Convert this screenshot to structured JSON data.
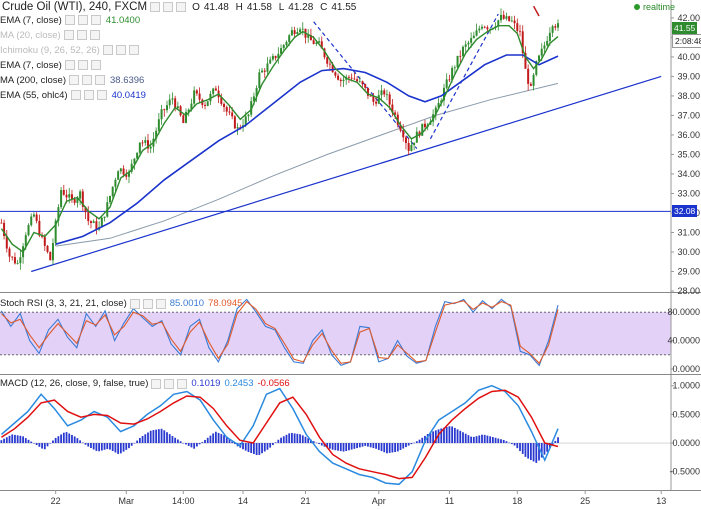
{
  "header": {
    "title": "Crude Oil (WTI), 240, FXCM",
    "ohlc": [
      "O",
      "41.48",
      "H",
      "41.58",
      "L",
      "41.28",
      "C",
      "41.55"
    ],
    "realtime_label": "realtime"
  },
  "indicators": [
    {
      "label": "EMA (7, close)",
      "value": "41.0400",
      "color": "#2e8b2e",
      "faded": false
    },
    {
      "label": "MA (20, close)",
      "value": "",
      "color": "#999999",
      "faded": true
    },
    {
      "label": "Ichimoku (9, 26, 52, 26)",
      "value": "",
      "color": "#999999",
      "faded": true
    },
    {
      "label": "EMA (7, close)",
      "value": "",
      "color": "#999999",
      "faded": false
    },
    {
      "label": "MA (200, close)",
      "value": "38.6396",
      "color": "#4a5a8a",
      "faded": false
    },
    {
      "label": "EMA (55, ohlc4)",
      "value": "40.0419",
      "color": "#1a33cc",
      "faded": false
    }
  ],
  "price_tags": {
    "last": "41.55",
    "countdown": "2:08:48",
    "hline": "32.08"
  },
  "colors": {
    "up_candle": "#2e8b2e",
    "down_candle": "#c21a1a",
    "ema7": "#2e8b2e",
    "ema55": "#1a33cc",
    "ma200": "#8a9aaa",
    "trendline": "#1a33cc",
    "stoch_k": "#3a7bd5",
    "stoch_d": "#e05a2a",
    "stoch_band": "#d9c2f5",
    "macd_line": "#2a8ae0",
    "signal_line": "#e01010",
    "hist": "#2a3ad0"
  },
  "stoch": {
    "label": "Stoch RSI (3, 3, 21, 21, close)",
    "k": "85.0010",
    "d": "78.0945"
  },
  "macd": {
    "label": "MACD (12, 26, close, 9, false, true)",
    "hist": "0.1019",
    "macd": "0.2453",
    "signal": "-0.0566"
  },
  "chart_data": [
    {
      "type": "candlestick",
      "title": "Crude Oil (WTI), 240, FXCM",
      "x_tick_labels": [
        "22",
        "Mar",
        "14:00",
        "14",
        "21",
        "Apr",
        "11",
        "18",
        "25",
        "13"
      ],
      "y_tick_labels": [
        "28.00",
        "29.00",
        "30.00",
        "31.00",
        "32.00",
        "33.00",
        "34.00",
        "35.00",
        "36.00",
        "37.00",
        "38.00",
        "39.00",
        "40.00",
        "41.00",
        "42.00"
      ],
      "ylim": [
        28.0,
        42.2
      ],
      "close_path": [
        [
          0,
          31.5
        ],
        [
          3,
          29.8
        ],
        [
          6,
          29.4
        ],
        [
          9,
          31.0
        ],
        [
          12,
          31.9
        ],
        [
          15,
          30.6
        ],
        [
          18,
          29.6
        ],
        [
          22,
          33.2
        ],
        [
          26,
          32.6
        ],
        [
          29,
          33.0
        ],
        [
          32,
          31.6
        ],
        [
          36,
          31.2
        ],
        [
          39,
          32.4
        ],
        [
          43,
          34.3
        ],
        [
          47,
          34.0
        ],
        [
          51,
          35.7
        ],
        [
          55,
          35.4
        ],
        [
          59,
          37.1
        ],
        [
          63,
          37.9
        ],
        [
          67,
          36.6
        ],
        [
          71,
          38.1
        ],
        [
          75,
          37.6
        ],
        [
          79,
          38.4
        ],
        [
          83,
          37.2
        ],
        [
          87,
          36.3
        ],
        [
          91,
          37.0
        ],
        [
          95,
          39.1
        ],
        [
          99,
          39.7
        ],
        [
          103,
          40.4
        ],
        [
          107,
          41.3
        ],
        [
          110,
          41.6
        ],
        [
          113,
          40.9
        ],
        [
          117,
          40.6
        ],
        [
          121,
          39.6
        ],
        [
          125,
          38.8
        ],
        [
          129,
          39.0
        ],
        [
          133,
          38.5
        ],
        [
          137,
          37.7
        ],
        [
          141,
          38.2
        ],
        [
          145,
          37.0
        ],
        [
          148,
          36.1
        ],
        [
          150,
          35.3
        ],
        [
          153,
          36.0
        ],
        [
          157,
          36.7
        ],
        [
          160,
          37.2
        ],
        [
          163,
          38.3
        ],
        [
          166,
          39.3
        ],
        [
          170,
          40.4
        ],
        [
          174,
          41.0
        ],
        [
          177,
          41.7
        ],
        [
          180,
          41.5
        ],
        [
          184,
          42.0
        ],
        [
          188,
          41.8
        ],
        [
          191,
          41.2
        ],
        [
          193,
          39.3
        ],
        [
          195,
          38.3
        ],
        [
          197,
          39.6
        ],
        [
          200,
          40.6
        ],
        [
          203,
          41.8
        ],
        [
          205,
          41.55
        ]
      ],
      "ema7_path": [
        [
          0,
          31.2
        ],
        [
          4,
          30.4
        ],
        [
          8,
          30.0
        ],
        [
          12,
          31.0
        ],
        [
          16,
          30.8
        ],
        [
          20,
          31.4
        ],
        [
          24,
          32.6
        ],
        [
          28,
          32.8
        ],
        [
          32,
          32.1
        ],
        [
          36,
          31.7
        ],
        [
          40,
          32.3
        ],
        [
          44,
          33.8
        ],
        [
          48,
          34.2
        ],
        [
          52,
          35.2
        ],
        [
          56,
          35.6
        ],
        [
          60,
          36.6
        ],
        [
          64,
          37.4
        ],
        [
          68,
          37.0
        ],
        [
          72,
          37.6
        ],
        [
          76,
          37.8
        ],
        [
          80,
          38.1
        ],
        [
          84,
          37.5
        ],
        [
          88,
          36.8
        ],
        [
          92,
          37.3
        ],
        [
          96,
          38.6
        ],
        [
          100,
          39.5
        ],
        [
          104,
          40.3
        ],
        [
          108,
          41.0
        ],
        [
          111,
          41.3
        ],
        [
          115,
          41.0
        ],
        [
          119,
          40.3
        ],
        [
          123,
          39.4
        ],
        [
          127,
          38.9
        ],
        [
          131,
          38.7
        ],
        [
          135,
          38.1
        ],
        [
          139,
          37.9
        ],
        [
          143,
          37.4
        ],
        [
          147,
          36.5
        ],
        [
          151,
          35.8
        ],
        [
          155,
          36.1
        ],
        [
          159,
          36.8
        ],
        [
          163,
          37.9
        ],
        [
          167,
          39.1
        ],
        [
          171,
          40.2
        ],
        [
          175,
          40.9
        ],
        [
          179,
          41.3
        ],
        [
          183,
          41.6
        ],
        [
          187,
          41.6
        ],
        [
          190,
          41.2
        ],
        [
          193,
          40.0
        ],
        [
          196,
          39.4
        ],
        [
          199,
          39.9
        ],
        [
          202,
          40.7
        ],
        [
          205,
          41.04
        ]
      ],
      "ema55_path": [
        [
          20,
          30.4
        ],
        [
          30,
          30.8
        ],
        [
          40,
          31.5
        ],
        [
          50,
          32.5
        ],
        [
          60,
          33.7
        ],
        [
          70,
          34.7
        ],
        [
          80,
          35.7
        ],
        [
          90,
          36.5
        ],
        [
          100,
          37.6
        ],
        [
          110,
          38.7
        ],
        [
          118,
          39.3
        ],
        [
          126,
          39.4
        ],
        [
          134,
          39.2
        ],
        [
          142,
          38.7
        ],
        [
          150,
          38.0
        ],
        [
          156,
          37.7
        ],
        [
          162,
          38.0
        ],
        [
          170,
          38.8
        ],
        [
          178,
          39.6
        ],
        [
          186,
          40.1
        ],
        [
          192,
          40.1
        ],
        [
          198,
          39.6
        ],
        [
          205,
          40.04
        ]
      ],
      "ma200_path": [
        [
          20,
          30.3
        ],
        [
          40,
          30.7
        ],
        [
          60,
          31.6
        ],
        [
          80,
          32.7
        ],
        [
          100,
          33.9
        ],
        [
          120,
          35.0
        ],
        [
          140,
          36.0
        ],
        [
          160,
          37.0
        ],
        [
          180,
          37.8
        ],
        [
          205,
          38.64
        ]
      ],
      "annotations": [
        {
          "type": "horizontal-line",
          "value": 32.08
        },
        {
          "type": "trendline",
          "from": [
            11,
            29.0
          ],
          "to": [
            243,
            39.0
          ]
        },
        {
          "type": "dashed-line",
          "from": [
            115,
            41.8
          ],
          "to": [
            153,
            35.3
          ]
        },
        {
          "type": "dashed-line",
          "from": [
            158,
            35.8
          ],
          "to": [
            183,
            42.2
          ]
        }
      ]
    },
    {
      "type": "line",
      "title": "Stoch RSI (3, 3, 21, 21, close)",
      "y_tick_labels": [
        "0.0000",
        "40.0000",
        "80.0000"
      ],
      "ylim": [
        0,
        100
      ],
      "band": [
        20,
        80
      ],
      "series": [
        {
          "name": "%K",
          "values": [
            82,
            60,
            78,
            40,
            22,
            55,
            70,
            45,
            30,
            78,
            60,
            82,
            40,
            65,
            85,
            72,
            60,
            68,
            35,
            20,
            60,
            70,
            30,
            10,
            40,
            85,
            98,
            80,
            60,
            55,
            30,
            10,
            8,
            40,
            55,
            20,
            5,
            10,
            60,
            58,
            10,
            15,
            40,
            18,
            8,
            12,
            60,
            95,
            92,
            98,
            80,
            96,
            85,
            98,
            88,
            25,
            20,
            5,
            40,
            90
          ]
        },
        {
          "name": "%D",
          "values": [
            78,
            65,
            70,
            48,
            30,
            48,
            64,
            50,
            36,
            68,
            62,
            76,
            48,
            60,
            80,
            75,
            63,
            66,
            42,
            25,
            52,
            66,
            38,
            15,
            35,
            78,
            95,
            84,
            64,
            57,
            36,
            14,
            10,
            34,
            50,
            26,
            8,
            10,
            52,
            57,
            16,
            15,
            34,
            22,
            10,
            12,
            52,
            90,
            93,
            96,
            84,
            93,
            87,
            95,
            90,
            32,
            22,
            8,
            34,
            84
          ]
        }
      ]
    },
    {
      "type": "bar",
      "title": "MACD (12, 26, close, 9, false, true)",
      "y_tick_labels": [
        "-0.5000",
        "0.0000",
        "0.5000",
        "1.0000"
      ],
      "ylim": [
        -0.75,
        1.1
      ],
      "series": [
        {
          "name": "Histogram",
          "values": [
            0.05,
            0.15,
            0.12,
            0.0,
            -0.12,
            0.08,
            0.2,
            0.1,
            -0.05,
            -0.15,
            -0.1,
            -0.2,
            -0.08,
            0.1,
            0.22,
            0.25,
            0.12,
            0.0,
            -0.1,
            0.05,
            0.2,
            0.12,
            -0.05,
            -0.15,
            -0.22,
            -0.1,
            0.08,
            0.18,
            0.15,
            0.05,
            -0.05,
            -0.12,
            -0.15,
            -0.1,
            -0.05,
            -0.1,
            -0.18,
            -0.15,
            -0.05,
            0.05,
            0.18,
            0.25,
            0.3,
            0.2,
            0.1,
            0.15,
            0.1,
            0.05,
            -0.05,
            -0.25,
            -0.35,
            -0.15,
            0.1
          ]
        },
        {
          "name": "MACD",
          "values": [
            0.15,
            0.35,
            0.55,
            0.85,
            0.6,
            0.3,
            0.4,
            0.55,
            0.45,
            0.2,
            0.3,
            0.5,
            0.65,
            0.85,
            0.9,
            0.75,
            0.4,
            0.1,
            -0.05,
            0.3,
            0.85,
            0.95,
            0.6,
            0.15,
            -0.15,
            -0.35,
            -0.45,
            -0.55,
            -0.6,
            -0.7,
            -0.72,
            -0.5,
            0.05,
            0.4,
            0.55,
            0.7,
            0.92,
            1.0,
            0.9,
            0.65,
            0.2,
            -0.3,
            0.25
          ]
        },
        {
          "name": "Signal",
          "values": [
            0.1,
            0.25,
            0.45,
            0.7,
            0.75,
            0.55,
            0.45,
            0.5,
            0.48,
            0.35,
            0.33,
            0.42,
            0.55,
            0.7,
            0.82,
            0.8,
            0.6,
            0.3,
            0.05,
            0.0,
            0.35,
            0.7,
            0.8,
            0.5,
            0.1,
            -0.2,
            -0.35,
            -0.45,
            -0.5,
            -0.55,
            -0.62,
            -0.6,
            -0.25,
            0.15,
            0.4,
            0.6,
            0.78,
            0.9,
            0.92,
            0.8,
            0.45,
            0.0,
            -0.06
          ]
        }
      ]
    }
  ]
}
